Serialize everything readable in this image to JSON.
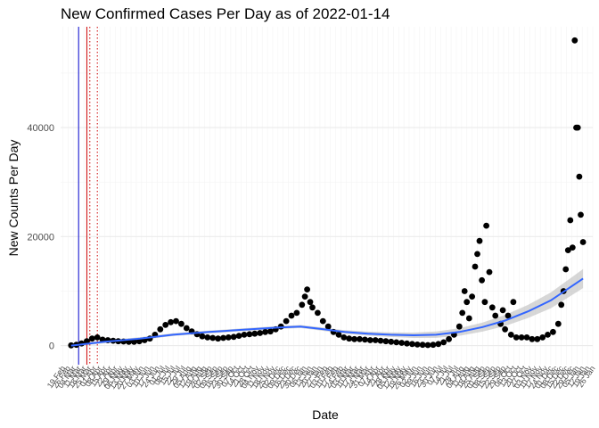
{
  "chart_data": {
    "type": "scatter",
    "title": "New Confirmed Cases Per Day as of 2022-01-14",
    "xlabel": "Date",
    "ylabel": "New Counts Per Day",
    "x_range": [
      "2020-02-16",
      "2022-01-26"
    ],
    "ylim": [
      -3500,
      58500
    ],
    "y_ticks": [
      0,
      20000,
      40000
    ],
    "y_tick_labels": [
      "0",
      "20000",
      "40000"
    ],
    "grid": true,
    "x_tick_labels_note": "dense rotated weekly date labels (overlapping, not individually legible)",
    "colors": {
      "points": "#000000",
      "smooth": "#3366ff",
      "smooth_band": "#bdbdbd",
      "vline_blue": "#0000cc",
      "vline_red": "#cc0000",
      "grid_major": "#ebebeb",
      "grid_minor": "#f3f3f3"
    },
    "vlines": [
      {
        "date": "2020-03-11",
        "color": "#0000cc",
        "style": "solid"
      },
      {
        "date": "2020-03-22",
        "color": "#cc0000",
        "style": "solid"
      },
      {
        "date": "2020-03-26",
        "color": "#cc0000",
        "style": "dotted"
      },
      {
        "date": "2020-04-05",
        "color": "#cc0000",
        "style": "dotted"
      }
    ],
    "series": [
      {
        "type": "points",
        "points": [
          {
            "x": "2020-03-01",
            "y": 50
          },
          {
            "x": "2020-03-08",
            "y": 150
          },
          {
            "x": "2020-03-15",
            "y": 400
          },
          {
            "x": "2020-03-22",
            "y": 800
          },
          {
            "x": "2020-03-29",
            "y": 1300
          },
          {
            "x": "2020-04-05",
            "y": 1500
          },
          {
            "x": "2020-04-12",
            "y": 1100
          },
          {
            "x": "2020-04-19",
            "y": 1000
          },
          {
            "x": "2020-04-26",
            "y": 900
          },
          {
            "x": "2020-05-03",
            "y": 800
          },
          {
            "x": "2020-05-10",
            "y": 750
          },
          {
            "x": "2020-05-17",
            "y": 700
          },
          {
            "x": "2020-05-24",
            "y": 700
          },
          {
            "x": "2020-05-31",
            "y": 800
          },
          {
            "x": "2020-06-07",
            "y": 1000
          },
          {
            "x": "2020-06-14",
            "y": 1300
          },
          {
            "x": "2020-06-21",
            "y": 2000
          },
          {
            "x": "2020-06-28",
            "y": 3000
          },
          {
            "x": "2020-07-05",
            "y": 3800
          },
          {
            "x": "2020-07-12",
            "y": 4300
          },
          {
            "x": "2020-07-19",
            "y": 4500
          },
          {
            "x": "2020-07-26",
            "y": 4000
          },
          {
            "x": "2020-08-02",
            "y": 3200
          },
          {
            "x": "2020-08-09",
            "y": 2600
          },
          {
            "x": "2020-08-16",
            "y": 2100
          },
          {
            "x": "2020-08-23",
            "y": 1700
          },
          {
            "x": "2020-08-30",
            "y": 1500
          },
          {
            "x": "2020-09-06",
            "y": 1400
          },
          {
            "x": "2020-09-13",
            "y": 1300
          },
          {
            "x": "2020-09-20",
            "y": 1400
          },
          {
            "x": "2020-09-27",
            "y": 1500
          },
          {
            "x": "2020-10-04",
            "y": 1600
          },
          {
            "x": "2020-10-11",
            "y": 1800
          },
          {
            "x": "2020-10-18",
            "y": 2000
          },
          {
            "x": "2020-10-25",
            "y": 2100
          },
          {
            "x": "2020-11-01",
            "y": 2200
          },
          {
            "x": "2020-11-08",
            "y": 2300
          },
          {
            "x": "2020-11-15",
            "y": 2500
          },
          {
            "x": "2020-11-22",
            "y": 2600
          },
          {
            "x": "2020-11-29",
            "y": 3000
          },
          {
            "x": "2020-12-06",
            "y": 3500
          },
          {
            "x": "2020-12-13",
            "y": 4500
          },
          {
            "x": "2020-12-20",
            "y": 5500
          },
          {
            "x": "2020-12-27",
            "y": 6000
          },
          {
            "x": "2021-01-03",
            "y": 7500
          },
          {
            "x": "2021-01-07",
            "y": 9000
          },
          {
            "x": "2021-01-10",
            "y": 10300
          },
          {
            "x": "2021-01-14",
            "y": 8000
          },
          {
            "x": "2021-01-17",
            "y": 7000
          },
          {
            "x": "2021-01-24",
            "y": 6000
          },
          {
            "x": "2021-01-31",
            "y": 4500
          },
          {
            "x": "2021-02-07",
            "y": 3500
          },
          {
            "x": "2021-02-14",
            "y": 2500
          },
          {
            "x": "2021-02-21",
            "y": 2000
          },
          {
            "x": "2021-02-28",
            "y": 1500
          },
          {
            "x": "2021-03-07",
            "y": 1300
          },
          {
            "x": "2021-03-14",
            "y": 1200
          },
          {
            "x": "2021-03-21",
            "y": 1200
          },
          {
            "x": "2021-03-28",
            "y": 1100
          },
          {
            "x": "2021-04-04",
            "y": 1000
          },
          {
            "x": "2021-04-11",
            "y": 1000
          },
          {
            "x": "2021-04-18",
            "y": 900
          },
          {
            "x": "2021-04-25",
            "y": 800
          },
          {
            "x": "2021-05-02",
            "y": 700
          },
          {
            "x": "2021-05-09",
            "y": 600
          },
          {
            "x": "2021-05-16",
            "y": 500
          },
          {
            "x": "2021-05-23",
            "y": 400
          },
          {
            "x": "2021-05-30",
            "y": 300
          },
          {
            "x": "2021-06-06",
            "y": 200
          },
          {
            "x": "2021-06-13",
            "y": 150
          },
          {
            "x": "2021-06-20",
            "y": 100
          },
          {
            "x": "2021-06-27",
            "y": 150
          },
          {
            "x": "2021-07-04",
            "y": 300
          },
          {
            "x": "2021-07-11",
            "y": 600
          },
          {
            "x": "2021-07-18",
            "y": 1200
          },
          {
            "x": "2021-07-25",
            "y": 2000
          },
          {
            "x": "2021-08-01",
            "y": 3500
          },
          {
            "x": "2021-08-05",
            "y": 6000
          },
          {
            "x": "2021-08-08",
            "y": 10000
          },
          {
            "x": "2021-08-11",
            "y": 8000
          },
          {
            "x": "2021-08-14",
            "y": 5000
          },
          {
            "x": "2021-08-18",
            "y": 9000
          },
          {
            "x": "2021-08-22",
            "y": 14500
          },
          {
            "x": "2021-08-25",
            "y": 16800
          },
          {
            "x": "2021-08-28",
            "y": 19200
          },
          {
            "x": "2021-08-31",
            "y": 12000
          },
          {
            "x": "2021-09-04",
            "y": 8000
          },
          {
            "x": "2021-09-06",
            "y": 22000
          },
          {
            "x": "2021-09-10",
            "y": 13500
          },
          {
            "x": "2021-09-14",
            "y": 7000
          },
          {
            "x": "2021-09-18",
            "y": 5500
          },
          {
            "x": "2021-09-25",
            "y": 4000
          },
          {
            "x": "2021-09-28",
            "y": 6500
          },
          {
            "x": "2021-10-01",
            "y": 3000
          },
          {
            "x": "2021-10-05",
            "y": 5500
          },
          {
            "x": "2021-10-09",
            "y": 2000
          },
          {
            "x": "2021-10-12",
            "y": 8000
          },
          {
            "x": "2021-10-16",
            "y": 1500
          },
          {
            "x": "2021-10-23",
            "y": 1500
          },
          {
            "x": "2021-10-30",
            "y": 1500
          },
          {
            "x": "2021-11-06",
            "y": 1200
          },
          {
            "x": "2021-11-13",
            "y": 1200
          },
          {
            "x": "2021-11-20",
            "y": 1500
          },
          {
            "x": "2021-11-27",
            "y": 2000
          },
          {
            "x": "2021-12-04",
            "y": 2500
          },
          {
            "x": "2021-12-11",
            "y": 4000
          },
          {
            "x": "2021-12-15",
            "y": 7500
          },
          {
            "x": "2021-12-18",
            "y": 10000
          },
          {
            "x": "2021-12-21",
            "y": 14000
          },
          {
            "x": "2021-12-24",
            "y": 17500
          },
          {
            "x": "2021-12-27",
            "y": 23000
          },
          {
            "x": "2021-12-30",
            "y": 18000
          },
          {
            "x": "2022-01-02",
            "y": 56000
          },
          {
            "x": "2022-01-04",
            "y": 40000
          },
          {
            "x": "2022-01-06",
            "y": 40000
          },
          {
            "x": "2022-01-08",
            "y": 31000
          },
          {
            "x": "2022-01-10",
            "y": 24000
          },
          {
            "x": "2022-01-13",
            "y": 19000
          }
        ]
      },
      {
        "type": "smooth",
        "points": [
          {
            "x": "2020-03-01",
            "y": 0
          },
          {
            "x": "2020-04-15",
            "y": 700
          },
          {
            "x": "2020-06-01",
            "y": 1300
          },
          {
            "x": "2020-07-15",
            "y": 2000
          },
          {
            "x": "2020-09-01",
            "y": 2500
          },
          {
            "x": "2020-10-15",
            "y": 2900
          },
          {
            "x": "2020-12-01",
            "y": 3300
          },
          {
            "x": "2021-01-01",
            "y": 3500
          },
          {
            "x": "2021-02-01",
            "y": 3000
          },
          {
            "x": "2021-03-01",
            "y": 2500
          },
          {
            "x": "2021-04-01",
            "y": 2200
          },
          {
            "x": "2021-05-01",
            "y": 2000
          },
          {
            "x": "2021-06-01",
            "y": 1900
          },
          {
            "x": "2021-07-01",
            "y": 2000
          },
          {
            "x": "2021-08-01",
            "y": 2500
          },
          {
            "x": "2021-09-01",
            "y": 3400
          },
          {
            "x": "2021-10-01",
            "y": 4600
          },
          {
            "x": "2021-11-01",
            "y": 6300
          },
          {
            "x": "2021-12-01",
            "y": 8300
          },
          {
            "x": "2022-01-13",
            "y": 12300
          }
        ]
      }
    ]
  }
}
